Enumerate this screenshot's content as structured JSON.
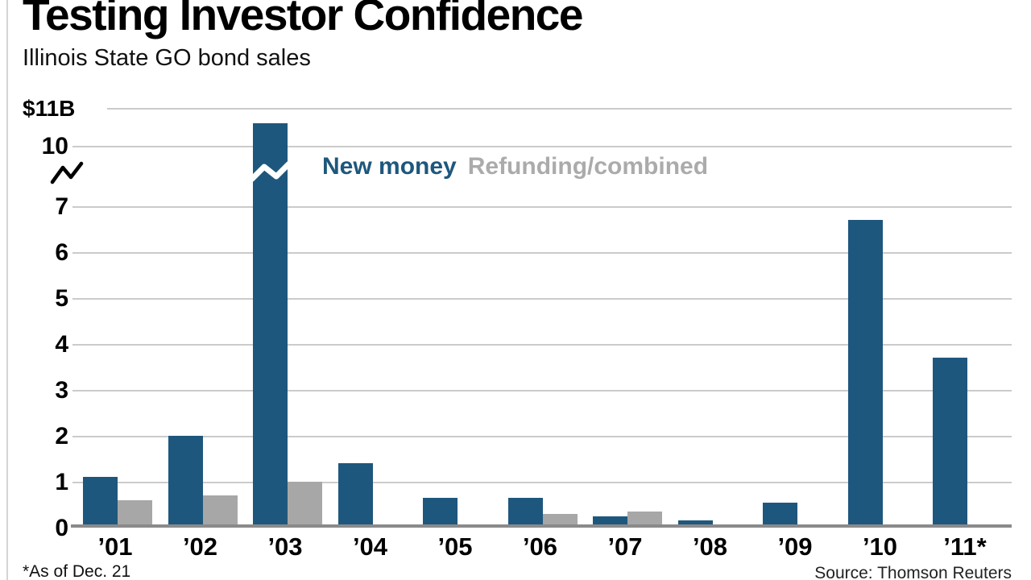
{
  "header": {
    "title": "Testing Investor Confidence",
    "subtitle": "Illinois State GO bond sales"
  },
  "legend": {
    "items": [
      {
        "label": "New money",
        "color": "#1E577D"
      },
      {
        "label": "Refunding/combined",
        "color": "#ABABAB"
      }
    ]
  },
  "footer": {
    "footnote": "*As of Dec. 21",
    "source": "Source: Thomson Reuters"
  },
  "colors": {
    "new_money_bar": "#1E577D",
    "refunding_bar": "#A7A7A7",
    "gridline": "#CBCBCB",
    "axis": "#8A8A8A",
    "text": "#000000",
    "background": "#FFFFFF"
  },
  "chart_data": {
    "type": "bar",
    "title": "Testing Investor Confidence",
    "subtitle": "Illinois State GO bond sales",
    "unit": "billions of dollars",
    "categories": [
      "’01",
      "’02",
      "’03",
      "’04",
      "’05",
      "’06",
      "’07",
      "’08",
      "’09",
      "’10",
      "’11*"
    ],
    "series": [
      {
        "name": "New money",
        "color": "#1E577D",
        "values": [
          1.1,
          2.0,
          10.6,
          1.4,
          0.65,
          0.65,
          0.25,
          0.15,
          0.55,
          6.7,
          3.7
        ]
      },
      {
        "name": "Refunding/combined",
        "color": "#A7A7A7",
        "values": [
          0.6,
          0.7,
          1.0,
          0,
          0,
          0.3,
          0.35,
          0,
          0,
          0,
          0
        ]
      }
    ],
    "y_axis": {
      "top_label": "$11B",
      "tick_values": [
        0,
        1,
        2,
        3,
        4,
        5,
        6,
        7,
        10
      ],
      "tick_labels": [
        "0",
        "1",
        "2",
        "3",
        "4",
        "5",
        "6",
        "7",
        "10"
      ],
      "gridline_values": [
        1,
        2,
        3,
        4,
        5,
        6,
        7,
        10,
        11
      ],
      "axis_break": {
        "lower": 7,
        "upper": 10
      },
      "broken_bar": {
        "series": "New money",
        "category": "’03"
      }
    },
    "ylim_display": [
      0,
      11
    ],
    "legend_position": "top-inside",
    "grid": true
  }
}
